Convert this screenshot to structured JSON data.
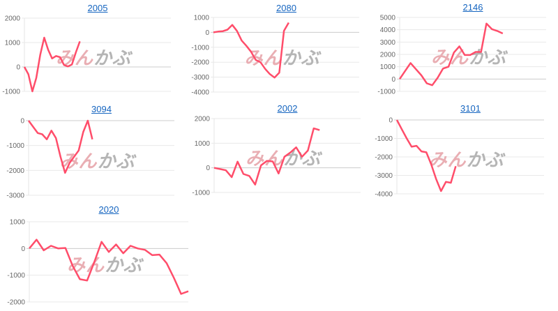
{
  "watermark": {
    "part1": "みん",
    "part2": "かぶ"
  },
  "colors": {
    "line": "#ff4d6a",
    "title": "#1565c0",
    "grid": "#e8e8e8",
    "zero": "#cccccc"
  },
  "chart_data": [
    {
      "type": "line",
      "title": "2005",
      "ylim": [
        -1000,
        2000
      ],
      "yticks": [
        "2000",
        "1000",
        "0",
        "-1000"
      ],
      "xlim": [
        0,
        37
      ],
      "grid": true,
      "values": [
        0,
        -300,
        -1000,
        -450,
        500,
        1200,
        700,
        350,
        450,
        400,
        80,
        20,
        100,
        600,
        1050
      ]
    },
    {
      "type": "line",
      "title": "2080",
      "ylim": [
        -4000,
        1000
      ],
      "yticks": [
        "1000",
        "0",
        "-1000",
        "-2000",
        "-3000",
        "-4000"
      ],
      "xlim": [
        0,
        31
      ],
      "grid": true,
      "values": [
        0,
        50,
        80,
        180,
        500,
        100,
        -550,
        -900,
        -1300,
        -1850,
        -2000,
        -2450,
        -2800,
        -3030,
        -2700,
        100,
        650
      ]
    },
    {
      "type": "line",
      "title": "2146",
      "ylim": [
        -1000,
        5000
      ],
      "yticks": [
        "5000",
        "4000",
        "3000",
        "2000",
        "1000",
        "0",
        "-1000"
      ],
      "xlim": [
        0,
        27
      ],
      "grid": true,
      "values": [
        0,
        650,
        1300,
        800,
        300,
        -350,
        -500,
        100,
        850,
        1000,
        2150,
        2650,
        1950,
        1950,
        2200,
        2200,
        4500,
        4050,
        3900,
        3700
      ]
    },
    {
      "type": "line",
      "title": "3094",
      "ylim": [
        -3000,
        0
      ],
      "yticks": [
        "0",
        "-1000",
        "-2000",
        "-3000"
      ],
      "xlim": [
        0,
        32
      ],
      "grid": true,
      "values": [
        0,
        -250,
        -500,
        -550,
        -750,
        -400,
        -700,
        -1450,
        -2100,
        -1700,
        -1450,
        -1200,
        -450,
        0,
        -750
      ]
    },
    {
      "type": "line",
      "title": "2002",
      "ylim": [
        -1000,
        2000
      ],
      "yticks": [
        "2000",
        "1000",
        "0",
        "-1000"
      ],
      "xlim": [
        0,
        25
      ],
      "grid": true,
      "values": [
        0,
        -50,
        -100,
        -380,
        250,
        -250,
        -330,
        -680,
        100,
        280,
        260,
        -230,
        450,
        620,
        830,
        450,
        700,
        1600,
        1530
      ]
    },
    {
      "type": "line",
      "title": "3101",
      "ylim": [
        -4000,
        0
      ],
      "yticks": [
        "0",
        "-1000",
        "-2000",
        "-3000",
        "-4000"
      ],
      "xlim": [
        0,
        30
      ],
      "grid": true,
      "values": [
        0,
        -500,
        -1000,
        -1450,
        -1400,
        -1700,
        -1750,
        -2400,
        -3200,
        -3850,
        -3350,
        -3400,
        -2500
      ]
    },
    {
      "type": "line",
      "title": "2020",
      "ylim": [
        -2000,
        1000
      ],
      "yticks": [
        "1000",
        "0",
        "-1000",
        "-2000"
      ],
      "xlim": [
        0,
        22
      ],
      "grid": true,
      "values": [
        0,
        330,
        -70,
        100,
        0,
        20,
        -650,
        -1150,
        -1200,
        -500,
        250,
        -130,
        150,
        -180,
        100,
        0,
        -50,
        -250,
        -230,
        -550,
        -1100,
        -1700,
        -1600
      ]
    }
  ]
}
